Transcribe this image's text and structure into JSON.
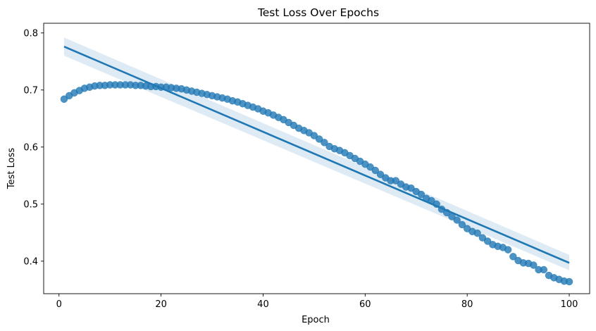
{
  "chart_data": {
    "type": "scatter",
    "title": "Test Loss Over Epochs",
    "xlabel": "Epoch",
    "ylabel": "Test Loss",
    "xlim": [
      -3,
      104
    ],
    "ylim": [
      0.343,
      0.817
    ],
    "xticks": [
      0,
      20,
      40,
      60,
      80,
      100
    ],
    "yticks": [
      0.4,
      0.5,
      0.6,
      0.7,
      0.8
    ],
    "xtick_labels": [
      "0",
      "20",
      "40",
      "60",
      "80",
      "100"
    ],
    "ytick_labels": [
      "0.4",
      "0.5",
      "0.6",
      "0.7",
      "0.8"
    ],
    "grid": false,
    "legend": false,
    "colors": {
      "points": "#1f77b4",
      "line": "#1f77b4",
      "band": "#1f77b4"
    },
    "series": [
      {
        "x": [
          1,
          2,
          3,
          4,
          5,
          6,
          7,
          8,
          9,
          10,
          11,
          12,
          13,
          14,
          15,
          16,
          17,
          18,
          19,
          20,
          21,
          22,
          23,
          24,
          25,
          26,
          27,
          28,
          29,
          30,
          31,
          32,
          33,
          34,
          35,
          36,
          37,
          38,
          39,
          40,
          41,
          42,
          43,
          44,
          45,
          46,
          47,
          48,
          49,
          50,
          51,
          52,
          53,
          54,
          55,
          56,
          57,
          58,
          59,
          60,
          61,
          62,
          63,
          64,
          65,
          66,
          67,
          68,
          69,
          70,
          71,
          72,
          73,
          74,
          75,
          76,
          77,
          78,
          79,
          80,
          81,
          82,
          83,
          84,
          85,
          86,
          87,
          88,
          89,
          90,
          91,
          92,
          93,
          94,
          95,
          96,
          97,
          98,
          99,
          100
        ],
        "y": [
          0.684,
          0.69,
          0.695,
          0.699,
          0.703,
          0.705,
          0.707,
          0.708,
          0.708,
          0.709,
          0.709,
          0.709,
          0.709,
          0.709,
          0.708,
          0.708,
          0.707,
          0.706,
          0.706,
          0.705,
          0.705,
          0.704,
          0.703,
          0.702,
          0.7,
          0.698,
          0.696,
          0.694,
          0.692,
          0.69,
          0.688,
          0.686,
          0.684,
          0.681,
          0.679,
          0.676,
          0.673,
          0.67,
          0.667,
          0.663,
          0.66,
          0.656,
          0.652,
          0.648,
          0.643,
          0.638,
          0.633,
          0.629,
          0.625,
          0.62,
          0.614,
          0.608,
          0.601,
          0.597,
          0.594,
          0.59,
          0.585,
          0.58,
          0.575,
          0.57,
          0.565,
          0.559,
          0.552,
          0.546,
          0.541,
          0.541,
          0.535,
          0.53,
          0.528,
          0.522,
          0.517,
          0.51,
          0.506,
          0.5,
          0.491,
          0.485,
          0.478,
          0.472,
          0.464,
          0.457,
          0.452,
          0.449,
          0.441,
          0.435,
          0.429,
          0.426,
          0.424,
          0.42,
          0.408,
          0.401,
          0.397,
          0.396,
          0.393,
          0.385,
          0.385,
          0.375,
          0.371,
          0.368,
          0.365,
          0.364
        ]
      }
    ],
    "regression": {
      "x": [
        1,
        100
      ],
      "y": [
        0.776,
        0.397
      ],
      "ci_lower": [
        0.76,
        0.384
      ],
      "ci_upper": [
        0.792,
        0.411
      ]
    }
  }
}
